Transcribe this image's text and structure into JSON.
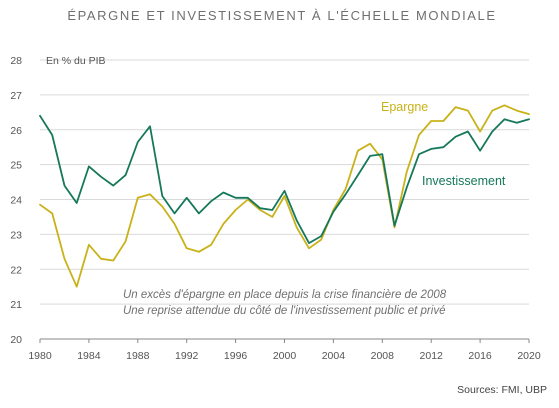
{
  "chart_data": {
    "type": "line",
    "title": "ÉPARGNE ET INVESTISSEMENT À L'ÉCHELLE MONDIALE",
    "unit_label": "En % du PIB",
    "source": "Sources: FMI, UBP",
    "annotations": [
      "Un excès d'épargne en place depuis la crise financière de 2008",
      "Une reprise attendue du côté de l'investissement public et privé"
    ],
    "xlim": [
      1980,
      2020
    ],
    "ylim": [
      20,
      28
    ],
    "x_ticks": [
      1980,
      1984,
      1988,
      1992,
      1996,
      2000,
      2004,
      2008,
      2012,
      2016,
      2020
    ],
    "y_ticks": [
      20,
      21,
      22,
      23,
      24,
      25,
      26,
      27,
      28
    ],
    "grid": true,
    "series": [
      {
        "name": "Epargne",
        "color": "#c9b219",
        "x": [
          1980,
          1981,
          1982,
          1983,
          1984,
          1985,
          1986,
          1987,
          1988,
          1989,
          1990,
          1991,
          1992,
          1993,
          1994,
          1995,
          1996,
          1997,
          1998,
          1999,
          2000,
          2001,
          2002,
          2003,
          2004,
          2005,
          2006,
          2007,
          2008,
          2009,
          2010,
          2011,
          2012,
          2013,
          2014,
          2015,
          2016,
          2017,
          2018,
          2019,
          2020
        ],
        "values": [
          23.85,
          23.6,
          22.3,
          21.5,
          22.7,
          22.3,
          22.25,
          22.8,
          24.05,
          24.15,
          23.8,
          23.3,
          22.6,
          22.5,
          22.7,
          23.3,
          23.7,
          24.0,
          23.7,
          23.5,
          24.1,
          23.2,
          22.6,
          22.85,
          23.7,
          24.3,
          25.4,
          25.6,
          25.15,
          23.2,
          24.8,
          25.85,
          26.25,
          26.25,
          26.65,
          26.55,
          25.95,
          26.55,
          26.7,
          26.55,
          26.45
        ]
      },
      {
        "name": "Investissement",
        "color": "#16785a",
        "x": [
          1980,
          1981,
          1982,
          1983,
          1984,
          1985,
          1986,
          1987,
          1988,
          1989,
          1990,
          1991,
          1992,
          1993,
          1994,
          1995,
          1996,
          1997,
          1998,
          1999,
          2000,
          2001,
          2002,
          2003,
          2004,
          2005,
          2006,
          2007,
          2008,
          2009,
          2010,
          2011,
          2012,
          2013,
          2014,
          2015,
          2016,
          2017,
          2018,
          2019,
          2020
        ],
        "values": [
          26.4,
          25.85,
          24.4,
          23.9,
          24.95,
          24.65,
          24.4,
          24.7,
          25.65,
          26.1,
          24.1,
          23.6,
          24.05,
          23.6,
          23.95,
          24.2,
          24.05,
          24.05,
          23.75,
          23.7,
          24.25,
          23.4,
          22.75,
          22.95,
          23.65,
          24.15,
          24.7,
          25.25,
          25.3,
          23.25,
          24.35,
          25.3,
          25.45,
          25.5,
          25.8,
          25.95,
          25.4,
          25.95,
          26.3,
          26.2,
          26.3
        ]
      }
    ]
  }
}
